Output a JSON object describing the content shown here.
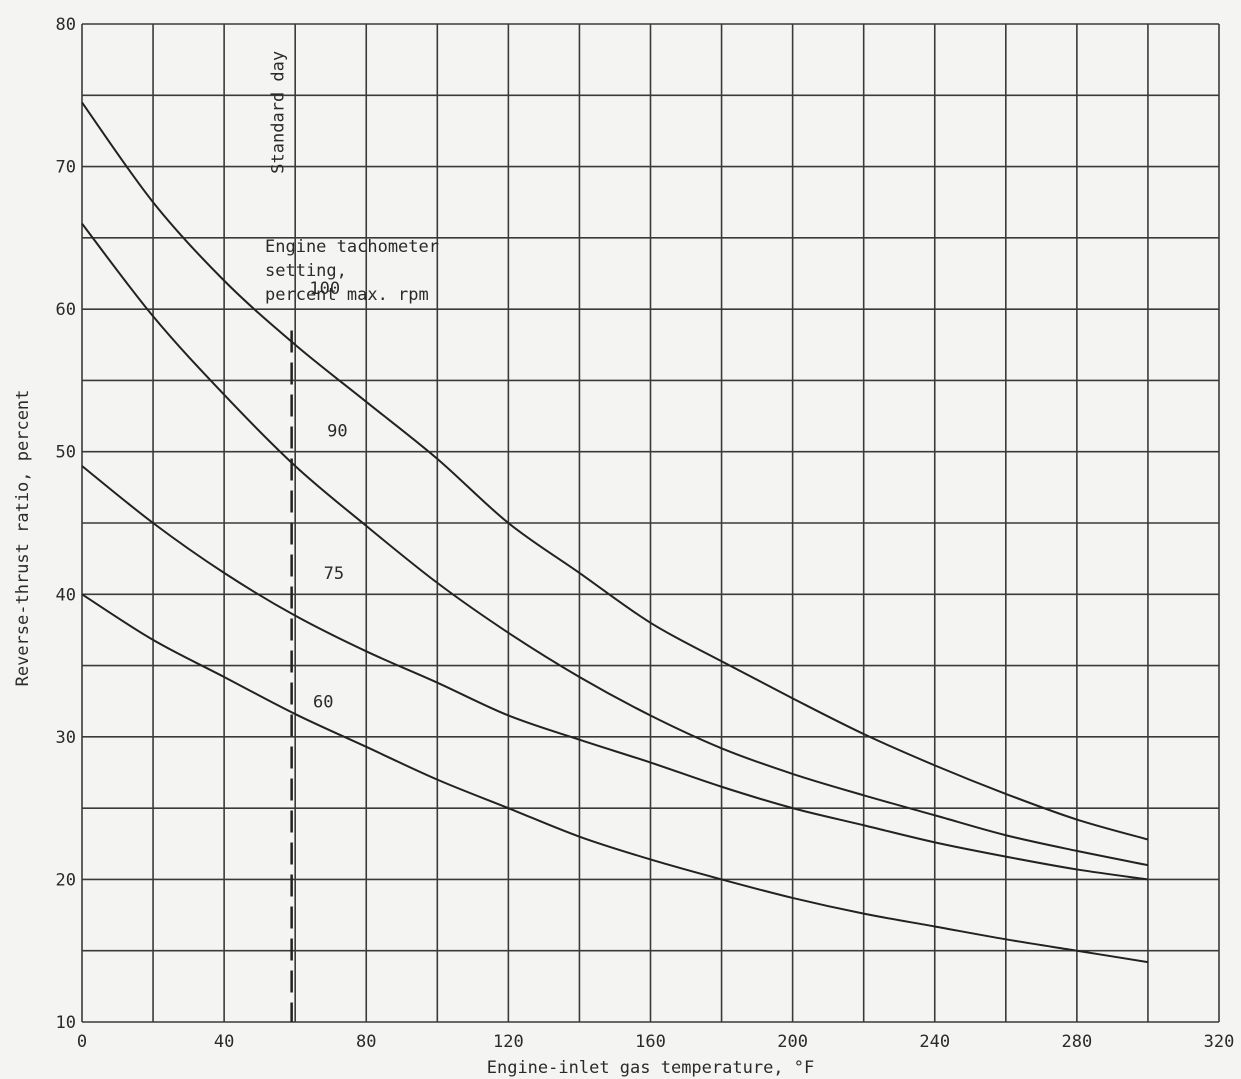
{
  "chart_data": {
    "type": "line",
    "xlabel": "Engine-inlet gas temperature, ",
    "xlabel_unit": "°F",
    "ylabel": "Reverse-thrust ratio, percent",
    "xlim": [
      0,
      320
    ],
    "ylim": [
      10,
      80
    ],
    "x_ticks": [
      "0",
      "40",
      "80",
      "120",
      "160",
      "200",
      "240",
      "280",
      "320"
    ],
    "y_ticks": [
      "10",
      "20",
      "30",
      "40",
      "50",
      "60",
      "70",
      "80"
    ],
    "grid": true,
    "standard_day": {
      "label": "Standard day",
      "x": 59
    },
    "legend_title": [
      "Engine tachometer",
      "setting,",
      "percent max. rpm"
    ],
    "x": [
      0,
      20,
      40,
      60,
      80,
      100,
      120,
      140,
      160,
      180,
      200,
      220,
      240,
      260,
      280,
      300
    ],
    "series": [
      {
        "name": "100",
        "values": [
          74.5,
          67.5,
          62.0,
          57.5,
          53.5,
          49.5,
          45.0,
          41.5,
          38.0,
          35.3,
          32.7,
          30.2,
          28.0,
          26.0,
          24.2,
          22.8
        ]
      },
      {
        "name": "90",
        "values": [
          66.0,
          59.5,
          54.0,
          49.0,
          44.8,
          40.8,
          37.3,
          34.2,
          31.5,
          29.2,
          27.4,
          25.9,
          24.5,
          23.1,
          22.0,
          21.0
        ]
      },
      {
        "name": "75",
        "values": [
          49.0,
          45.0,
          41.5,
          38.5,
          36.0,
          33.8,
          31.5,
          29.8,
          28.2,
          26.5,
          25.0,
          23.8,
          22.6,
          21.6,
          20.7,
          20.0
        ]
      },
      {
        "name": "60",
        "values": [
          40.0,
          36.8,
          34.2,
          31.6,
          29.3,
          27.0,
          25.0,
          23.0,
          21.4,
          20.0,
          18.7,
          17.6,
          16.7,
          15.8,
          15.0,
          14.2
        ]
      }
    ]
  }
}
